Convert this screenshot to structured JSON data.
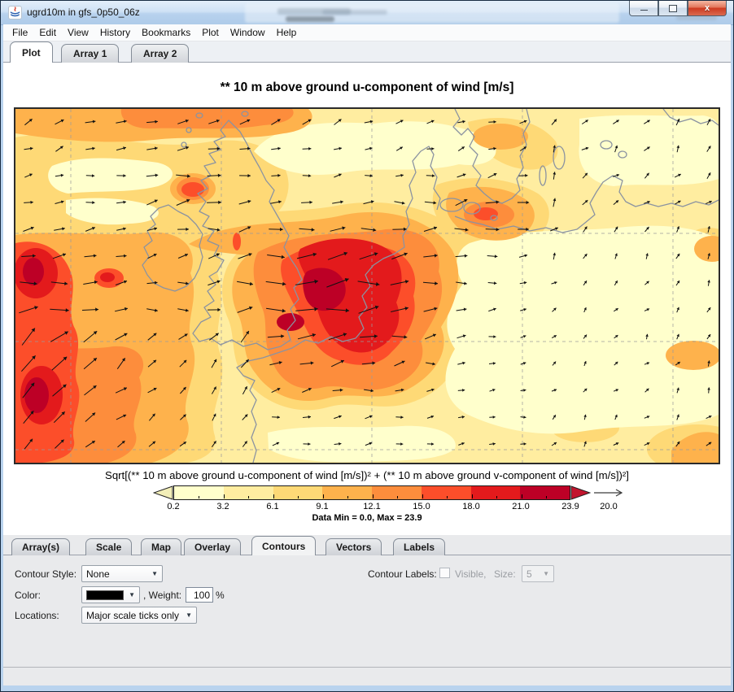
{
  "window": {
    "title": "ugrd10m in gfs_0p50_06z",
    "minimize_glyph": "",
    "close_glyph": "x"
  },
  "menu": {
    "items": [
      "File",
      "Edit",
      "View",
      "History",
      "Bookmarks",
      "Plot",
      "Window",
      "Help"
    ]
  },
  "top_tabs": {
    "items": [
      "Plot",
      "Array 1",
      "Array 2"
    ],
    "active": "Plot"
  },
  "plot": {
    "title": "** 10 m above ground u-component of wind [m/s]",
    "caption": "Sqrt[(** 10 m above ground u-component of wind [m/s])² + (** 10 m above ground v-component of wind [m/s])²]",
    "stats": "Data Min = 0.0, Max = 23.9",
    "colorbar": {
      "tick_labels": [
        "0.2",
        "3.2",
        "6.1",
        "9.1",
        "12.1",
        "15.0",
        "18.0",
        "21.0",
        "23.9"
      ],
      "segment_colors": [
        "#ffffcc",
        "#ffeda0",
        "#fed976",
        "#feb24c",
        "#fd8d3c",
        "#fc4e2a",
        "#e31a1c",
        "#bd0026"
      ],
      "under_arrow_color": "#f2eeb8",
      "over_arrow_color": "#c2152e",
      "reference_vector_label": "20.0"
    }
  },
  "bottom_tabs": {
    "items": [
      "Array(s)",
      "Scale",
      "Map",
      "Overlay",
      "Contours",
      "Vectors",
      "Labels"
    ],
    "active": "Contours"
  },
  "contours_panel": {
    "contour_style_label": "Contour Style:",
    "contour_style_value": "None",
    "color_label": "Color:",
    "weight_label": ", Weight:",
    "weight_value": "100",
    "weight_unit": "%",
    "locations_label": "Locations:",
    "locations_value": "Major scale ticks only",
    "contour_labels_label": "Contour Labels:",
    "visible_label": "Visible,",
    "size_label": "Size:",
    "size_value": "5"
  }
}
